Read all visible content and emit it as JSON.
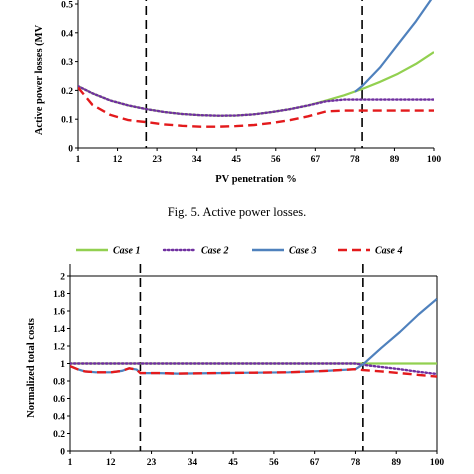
{
  "caption_top": "Fig. 5.  Active power losses.",
  "legend": [
    {
      "label": "Case 1",
      "color": "#92d050",
      "dash": "solid"
    },
    {
      "label": "Case 2",
      "color": "#7030a0",
      "dash": "dotted"
    },
    {
      "label": "Case 3",
      "color": "#4f81bd",
      "dash": "solid"
    },
    {
      "label": "Case 4",
      "color": "#e31a1c",
      "dash": "dashed"
    }
  ],
  "chart_data": [
    {
      "type": "line",
      "xlabel": "PV penetration %",
      "ylabel": "Active power losses (MV",
      "x_ticks": [
        "1",
        "12",
        "23",
        "34",
        "45",
        "56",
        "67",
        "78",
        "89",
        "100"
      ],
      "y_ticks": [
        "0",
        "0.1",
        "0.2",
        "0.3",
        "0.4",
        "0.5"
      ],
      "xlim": [
        1,
        100
      ],
      "ylim": [
        0,
        0.5
      ],
      "vlines": [
        20,
        80
      ],
      "series": [
        {
          "name": "Case 1",
          "x": [
            1,
            5,
            10,
            15,
            20,
            25,
            30,
            35,
            40,
            45,
            50,
            55,
            60,
            65,
            70,
            75,
            80,
            85,
            90,
            95,
            100
          ],
          "y": [
            0.215,
            0.19,
            0.165,
            0.148,
            0.135,
            0.125,
            0.118,
            0.114,
            0.112,
            0.113,
            0.117,
            0.125,
            0.135,
            0.148,
            0.165,
            0.183,
            0.205,
            0.23,
            0.258,
            0.292,
            0.333
          ]
        },
        {
          "name": "Case 2",
          "x": [
            1,
            5,
            10,
            15,
            20,
            25,
            30,
            35,
            40,
            45,
            50,
            55,
            60,
            65,
            70,
            75,
            78,
            80,
            85,
            90,
            95,
            100
          ],
          "y": [
            0.215,
            0.19,
            0.165,
            0.148,
            0.135,
            0.125,
            0.118,
            0.114,
            0.112,
            0.113,
            0.117,
            0.125,
            0.135,
            0.148,
            0.162,
            0.168,
            0.168,
            0.168,
            0.168,
            0.168,
            0.168,
            0.168
          ]
        },
        {
          "name": "Case 3",
          "x": [
            78,
            80,
            85,
            90,
            95,
            100
          ],
          "y": [
            0.195,
            0.215,
            0.28,
            0.36,
            0.44,
            0.53
          ]
        },
        {
          "name": "Case 4",
          "x": [
            1,
            5,
            10,
            15,
            20,
            25,
            30,
            35,
            40,
            45,
            50,
            55,
            60,
            65,
            70,
            75,
            80,
            85,
            90,
            95,
            100
          ],
          "y": [
            0.21,
            0.15,
            0.115,
            0.097,
            0.09,
            0.082,
            0.077,
            0.074,
            0.074,
            0.076,
            0.08,
            0.087,
            0.097,
            0.11,
            0.127,
            0.13,
            0.13,
            0.13,
            0.13,
            0.13,
            0.13
          ]
        }
      ]
    },
    {
      "type": "line",
      "xlabel": "",
      "ylabel": "Normalized total costs",
      "x_ticks": [
        "1",
        "12",
        "23",
        "34",
        "45",
        "56",
        "67",
        "78",
        "89",
        "100"
      ],
      "y_ticks": [
        "0",
        "0.2",
        "0.4",
        "0.6",
        "0.8",
        "1",
        "1.2",
        "1.4",
        "1.6",
        "1.8",
        "2"
      ],
      "xlim": [
        1,
        100
      ],
      "ylim": [
        0,
        2
      ],
      "vlines": [
        20,
        80
      ],
      "series": [
        {
          "name": "Case 1",
          "x": [
            1,
            10,
            20,
            30,
            40,
            50,
            60,
            70,
            78,
            80,
            85,
            90,
            95,
            100
          ],
          "y": [
            1,
            1,
            1,
            1,
            1,
            1,
            1,
            1,
            1,
            1,
            1,
            1,
            1,
            1
          ]
        },
        {
          "name": "Case 2",
          "x": [
            1,
            10,
            20,
            30,
            40,
            50,
            60,
            70,
            78,
            80,
            85,
            90,
            95,
            100
          ],
          "y": [
            1,
            1,
            1,
            1,
            1,
            1,
            1,
            1,
            1,
            0.985,
            0.96,
            0.935,
            0.905,
            0.88
          ]
        },
        {
          "name": "Case 3",
          "x": [
            1,
            3,
            5,
            8,
            12,
            15,
            17,
            19,
            20,
            25,
            30,
            40,
            50,
            60,
            70,
            78,
            80,
            85,
            90,
            95,
            100
          ],
          "y": [
            0.97,
            0.935,
            0.91,
            0.9,
            0.9,
            0.915,
            0.945,
            0.93,
            0.89,
            0.89,
            0.885,
            0.89,
            0.895,
            0.9,
            0.915,
            0.935,
            0.99,
            1.18,
            1.36,
            1.56,
            1.74
          ]
        },
        {
          "name": "Case 4",
          "x": [
            1,
            3,
            5,
            8,
            12,
            15,
            17,
            19,
            20,
            25,
            30,
            40,
            50,
            60,
            70,
            78,
            80,
            85,
            90,
            95,
            100
          ],
          "y": [
            0.97,
            0.935,
            0.91,
            0.9,
            0.9,
            0.915,
            0.945,
            0.93,
            0.89,
            0.89,
            0.885,
            0.89,
            0.895,
            0.9,
            0.915,
            0.935,
            0.925,
            0.91,
            0.89,
            0.87,
            0.85
          ]
        }
      ]
    }
  ]
}
